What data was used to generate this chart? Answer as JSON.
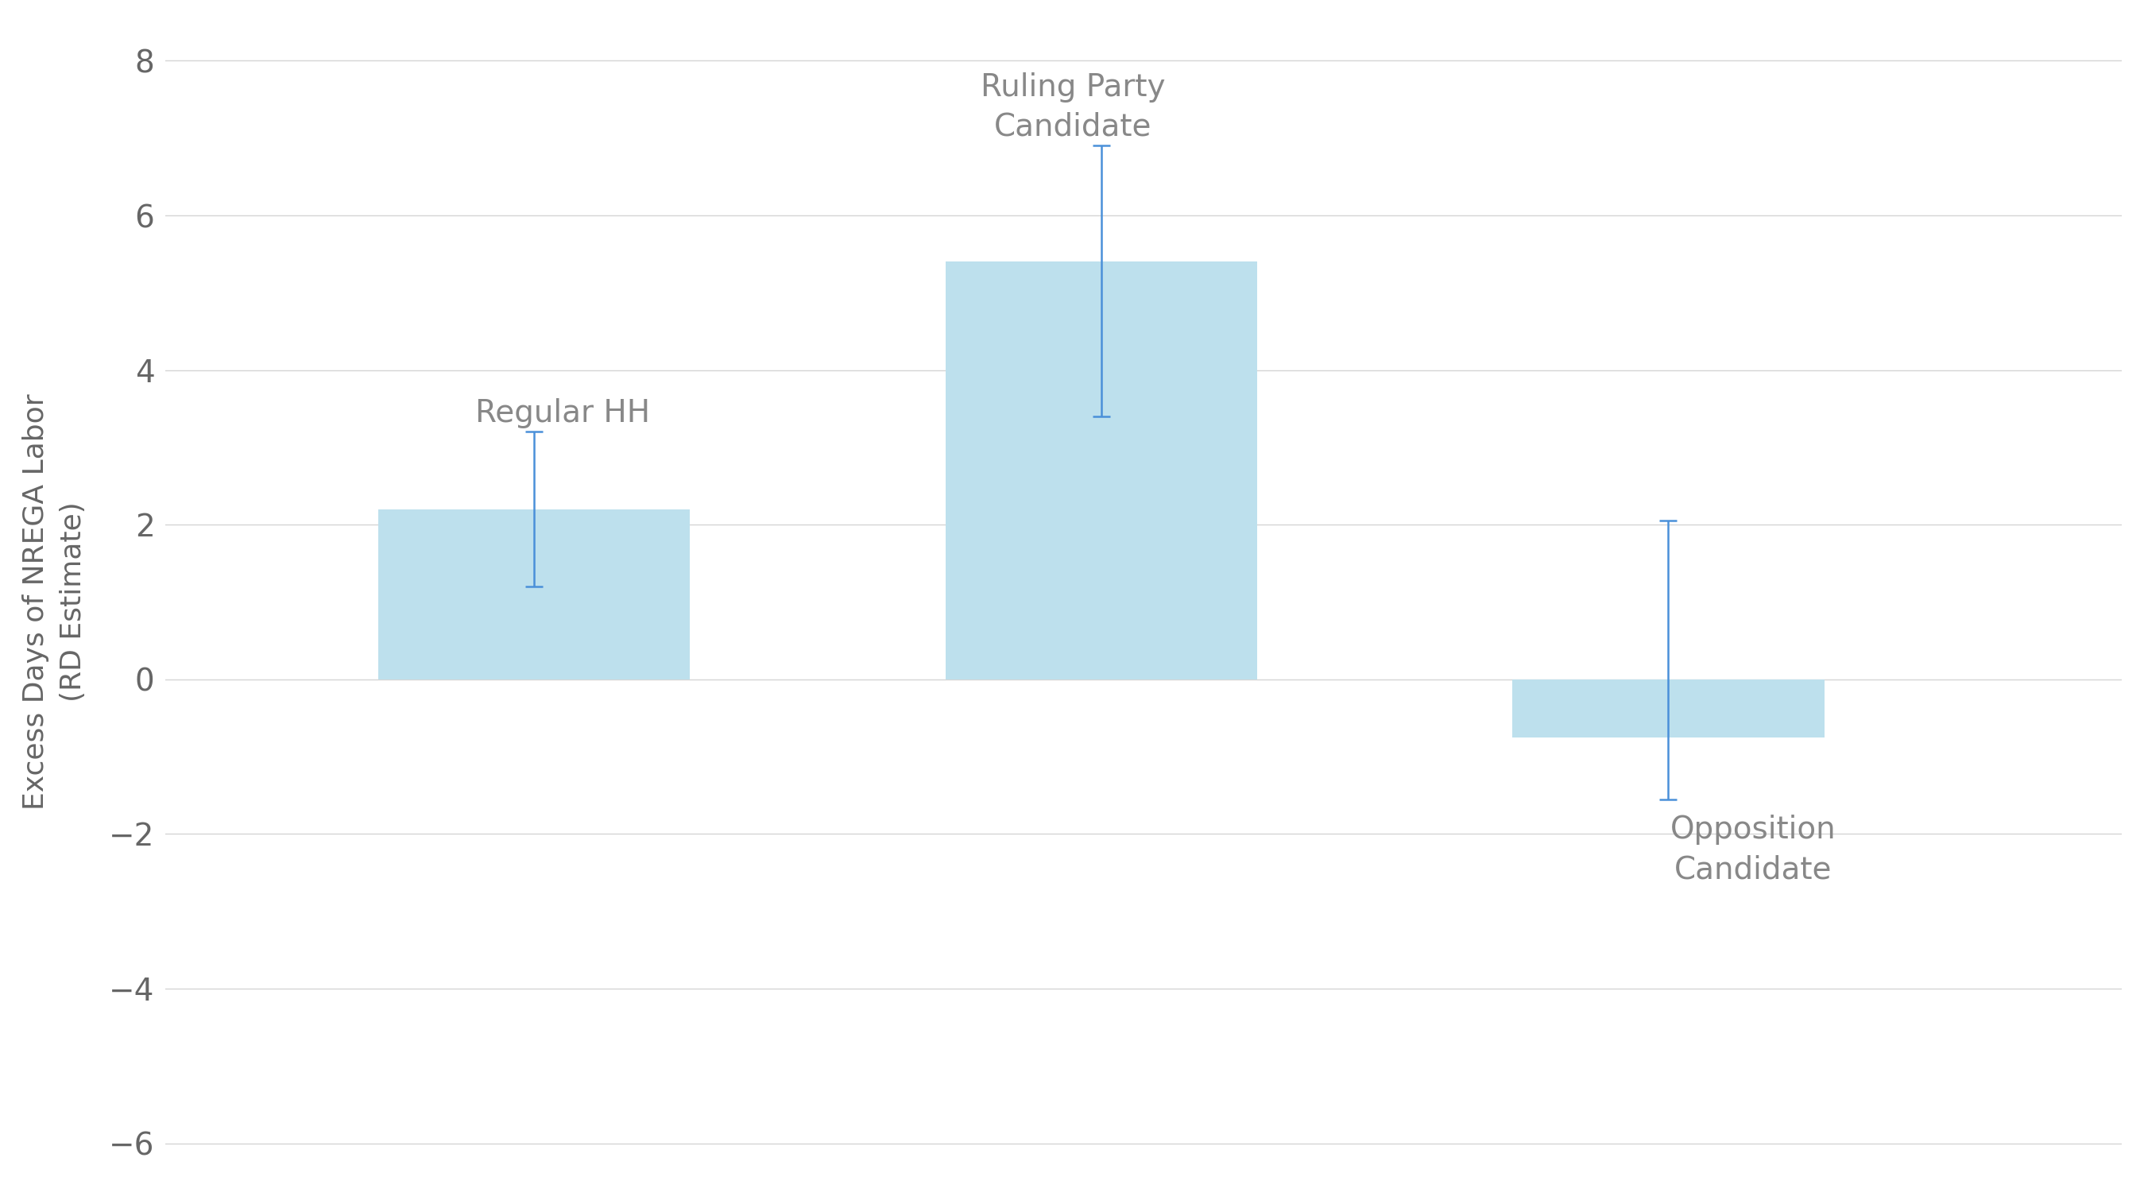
{
  "values": [
    2.2,
    5.4,
    -0.75
  ],
  "yerr_lower": [
    1.0,
    2.0,
    0.8
  ],
  "yerr_upper": [
    1.0,
    1.5,
    2.8
  ],
  "bar_color": "#bde0ed",
  "error_color": "#4a90d9",
  "ylabel": "Excess Days of NREGA Labor\n(RD Estimate)",
  "ylim": [
    -6.5,
    8.5
  ],
  "yticks": [
    -6,
    -4,
    -2,
    0,
    2,
    4,
    6,
    8
  ],
  "bar_width": 0.55,
  "bar_positions": [
    1,
    2,
    3
  ],
  "xlim": [
    0.35,
    3.8
  ],
  "label_fontsize": 28,
  "ylabel_fontsize": 26,
  "tick_fontsize": 28,
  "label_color": "#888888",
  "tick_color": "#666666",
  "background_color": "#ffffff",
  "grid_color": "#d5d5d5",
  "error_linewidth": 1.8,
  "capsize": 8,
  "capthick": 1.8
}
